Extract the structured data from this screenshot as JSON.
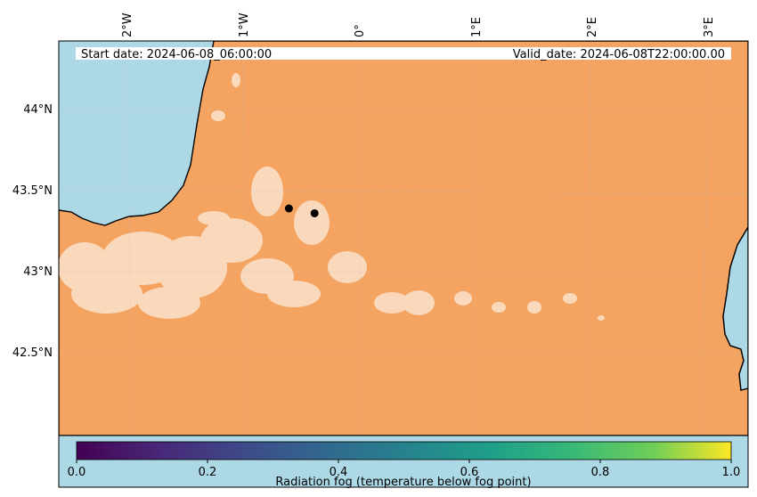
{
  "map": {
    "header": {
      "start_date": "Start date: 2024-06-08_06:00:00",
      "valid_date": "Valid_date: 2024-06-08T22:00:00.00"
    },
    "lon_ticks": [
      "2°W",
      "1°W",
      "0°",
      "1°E",
      "2°E",
      "3°E"
    ],
    "lat_ticks": [
      "44°N",
      "43.5°N",
      "43°N",
      "42.5°N"
    ],
    "markers": [
      {
        "lon": -0.6,
        "lat": 43.39
      },
      {
        "lon": -0.38,
        "lat": 43.36
      }
    ],
    "colors": {
      "land": "#f4a460",
      "sea": "#add8e6",
      "fog_patch": "#fbe6d4",
      "marker": "#000000"
    }
  },
  "colorbar": {
    "label": "Radiation fog (temperature below fog point)",
    "ticks": [
      "0.0",
      "0.2",
      "0.4",
      "0.6",
      "0.8",
      "1.0"
    ],
    "colormap": "viridis",
    "range": [
      0,
      1
    ]
  }
}
